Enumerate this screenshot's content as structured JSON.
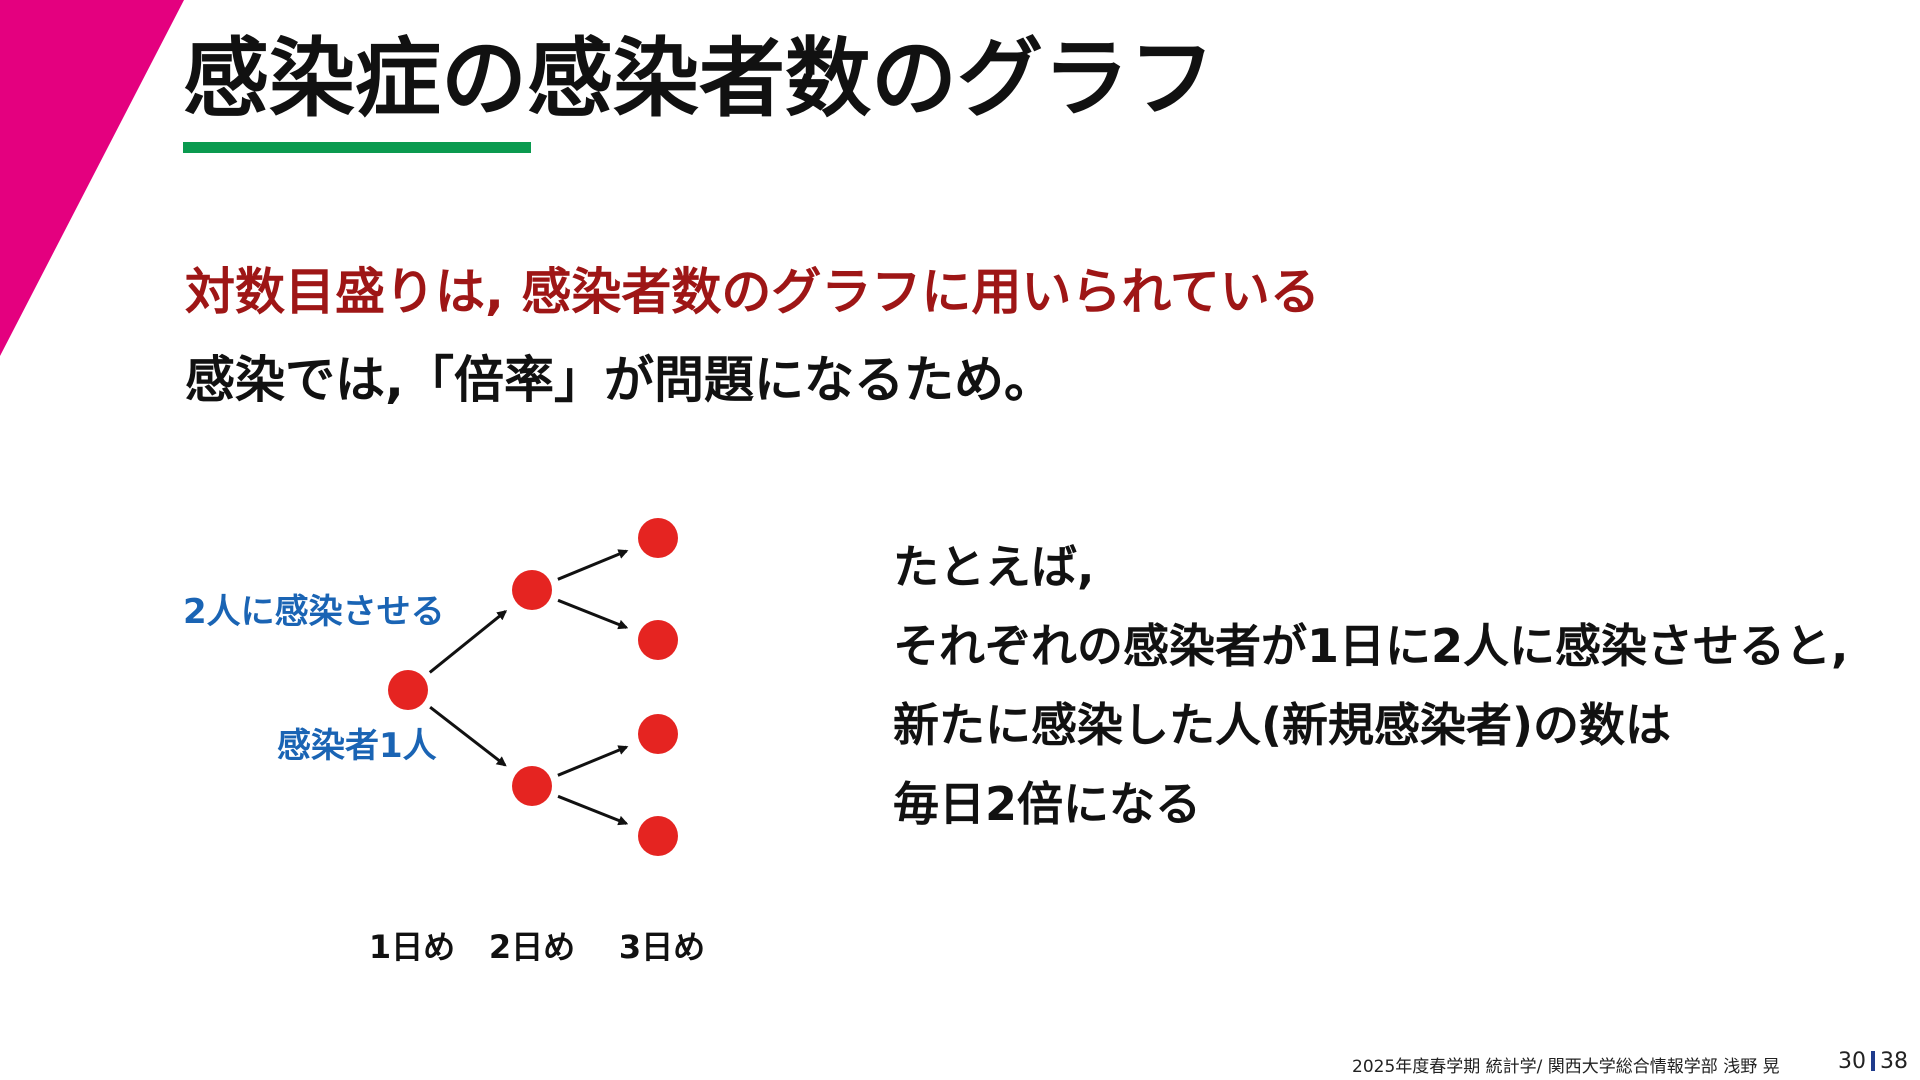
{
  "slide": {
    "title": "感染症の感染者数のグラフ",
    "headline": "対数目盛りは, 感染者数のグラフに用いられている",
    "subline": "感染では,「倍率」が問題になるため。"
  },
  "diagram": {
    "label_spread": "2人に感染させる",
    "label_infected": "感染者1人",
    "day_labels": [
      "1日め",
      "2日め",
      "3日め"
    ],
    "days": [
      1,
      2,
      3
    ],
    "people_per_day": [
      1,
      2,
      4
    ],
    "node_color": "#e52421",
    "label_color": "#1a64b4"
  },
  "explanation": {
    "lines": [
      "たとえば,",
      "それぞれの感染者が1日に2人に感染させると,",
      "新たに感染した人(新規感染者)の数は",
      "毎日2倍になる"
    ]
  },
  "footer": {
    "course": "2025年度春学期  統計学/  関西大学総合情報学部  浅野  晃",
    "page": "30",
    "total": "38"
  },
  "colors": {
    "accent_magenta": "#e4007f",
    "underline_green": "#0a9a4f",
    "headline_red": "#9e1616",
    "page_bar": "#1f3b8c"
  }
}
